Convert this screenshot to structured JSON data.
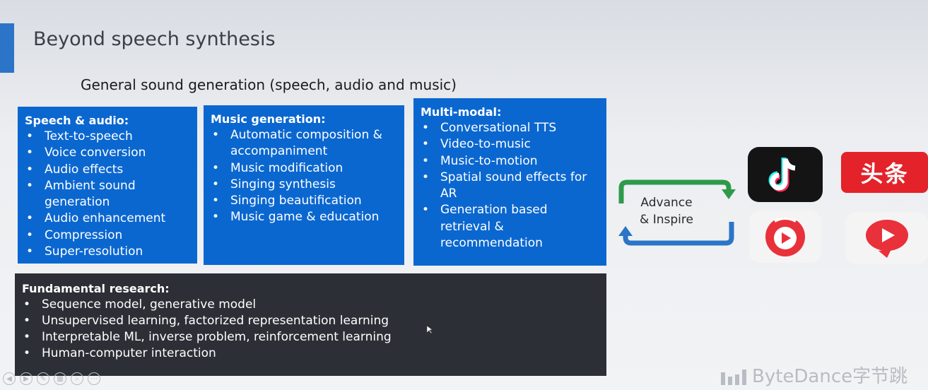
{
  "slide": {
    "title": "Beyond speech synthesis",
    "subtitle": "General sound generation (speech, audio and music)"
  },
  "boxes": {
    "speech": {
      "heading": "Speech & audio:",
      "items": [
        "Text-to-speech",
        "Voice conversion",
        "Audio effects",
        "Ambient sound generation",
        "Audio enhancement",
        "Compression",
        "Super-resolution"
      ]
    },
    "music": {
      "heading": "Music generation:",
      "items": [
        "Automatic composition & accompaniment",
        "Music modification",
        "Singing synthesis",
        "Singing beautification",
        "Music game & education"
      ]
    },
    "multimodal": {
      "heading": "Multi-modal:",
      "items": [
        "Conversational TTS",
        "Video-to-music",
        "Music-to-motion",
        "Spatial sound effects for AR",
        "Generation based retrieval & recommendation"
      ]
    },
    "fundamental": {
      "heading": "Fundamental research:",
      "items": [
        "Sequence model, generative model",
        "Unsupervised learning, factorized representation learning",
        "Interpretable ML, inverse problem, reinforcement learning",
        "Human-computer interaction"
      ]
    }
  },
  "cycle": {
    "line1": "Advance",
    "line2": "& Inspire"
  },
  "apps": {
    "toutiao_text": "头条",
    "icons": [
      "tiktok-icon",
      "toutiao-icon",
      "kuaishou-icon",
      "xigua-icon"
    ]
  },
  "footer": {
    "logo_text": "ByteDance字节跳"
  },
  "colors": {
    "box_blue": "#0b67d0",
    "box_dark": "#2d2f36",
    "arrow_green": "#2e9a4a",
    "arrow_blue": "#2b74c8",
    "toutiao_red": "#e3222a"
  }
}
